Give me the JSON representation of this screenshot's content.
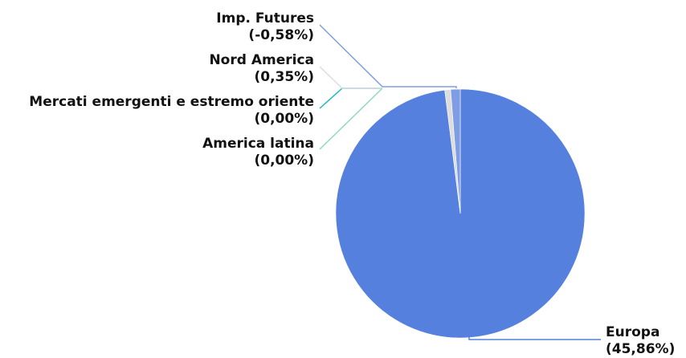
{
  "chart_data": {
    "type": "pie",
    "title": "",
    "legend": "none",
    "slices": [
      {
        "name": "Europa",
        "value_label": "(45,86%)",
        "value": 45.86,
        "color": "#5580dd"
      },
      {
        "name": "America latina",
        "value_label": "(0,00%)",
        "value": 0.0,
        "color": "#8fd8c3"
      },
      {
        "name": "Mercati emergenti e estremo oriente",
        "value_label": "(0,00%)",
        "value": 0.0,
        "color": "#1fb8c3"
      },
      {
        "name": "Nord America",
        "value_label": "(0,35%)",
        "value": 0.35,
        "color": "#dddddd"
      },
      {
        "name": "Imp. Futures",
        "value_label": "(-0,58%)",
        "value": -0.58,
        "color": "#7f9de4"
      }
    ]
  }
}
